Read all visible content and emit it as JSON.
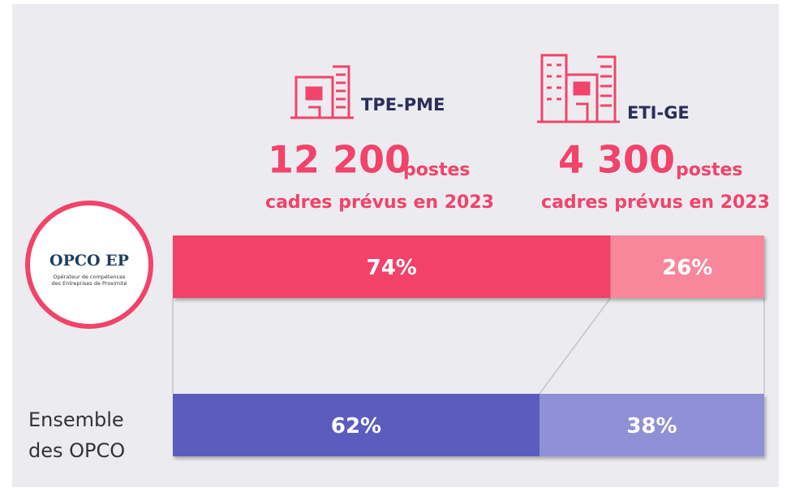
{
  "chart_data": {
    "type": "stacked_bar_horizontal",
    "categories": [
      "OPCO EP",
      "Ensemble des OPCO"
    ],
    "logo_tagline": [
      "Opérateur de compétences",
      "des Entreprises de Proximité"
    ],
    "xlim": [
      0,
      100
    ],
    "series": [
      {
        "name": "TPE-PME",
        "headline": "12 200",
        "unit": "postes",
        "caption": "cadres prévus en 2023",
        "colors": [
          "#f2436a",
          "#5b5cbf"
        ],
        "values": [
          74,
          62
        ],
        "value_labels": [
          "74%",
          "62%"
        ]
      },
      {
        "name": "ETI-GE",
        "headline": "4 300",
        "unit": "postes",
        "caption": "cadres prévus en 2023",
        "colors": [
          "#f8879c",
          "#8f90d5"
        ],
        "values": [
          26,
          38
        ],
        "value_labels": [
          "26%",
          "38%"
        ]
      }
    ]
  }
}
